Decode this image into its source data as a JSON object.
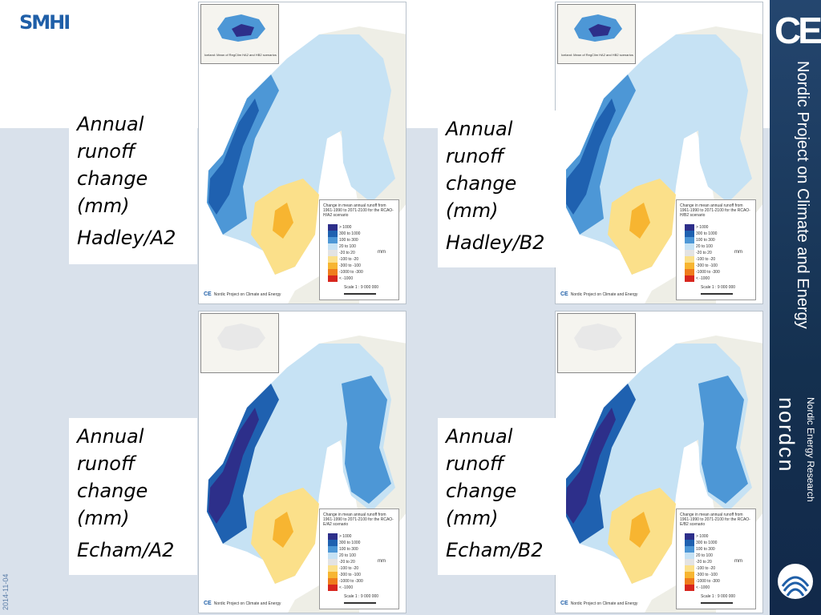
{
  "header": {
    "logo": "SMHI",
    "date": "2014-11-04"
  },
  "sidebar": {
    "logo": "CE",
    "title": "Nordic Project on Climate and Energy",
    "org_name": "nordcn",
    "org_subtitle": "Nordic Energy Research"
  },
  "legend": {
    "unit": "mm",
    "scale": "Scale 1 : 9 000 000",
    "items": [
      {
        "label": "> 1000",
        "color": "#2d2f8a"
      },
      {
        "label": "300 to 1000",
        "color": "#1f61b0"
      },
      {
        "label": "100 to 300",
        "color": "#4d97d6"
      },
      {
        "label": "20 to 100",
        "color": "#c6e2f4"
      },
      {
        "label": "-20 to 20",
        "color": "#e3e3e3"
      },
      {
        "label": "-100 to -20",
        "color": "#fbe08a"
      },
      {
        "label": "-300 to -100",
        "color": "#f7b531"
      },
      {
        "label": "-1000 to -300",
        "color": "#ef7c1c"
      },
      {
        "label": "< -1000",
        "color": "#d7261e"
      }
    ],
    "footer": "Nordic Project on Climate and Energy"
  },
  "panels": [
    {
      "id": "hadley-a2",
      "legend_title": "Change in mean annual runoff from 1961-1990 to 2071-2100 for the RCAO-H/A2 scenario",
      "inset_caption": "Iceland: Mean of RegClim HA2 and HB2 scenarios",
      "caption": {
        "line1": "Annual",
        "line2": "runoff",
        "line3": "change",
        "line4": "(mm)",
        "model": "Hadley/A2"
      }
    },
    {
      "id": "hadley-b2",
      "legend_title": "Change in mean annual runoff from 1961-1990 to 2071-2100 for the RCAO-H/B2 scenario",
      "inset_caption": "Iceland: Mean of RegClim HA2 and HB2 scenarios",
      "caption": {
        "line1": "Annual",
        "line2": "runoff",
        "line3": "change",
        "line4": "(mm)",
        "model": "Hadley/B2"
      }
    },
    {
      "id": "echam-a2",
      "legend_title": "Change in mean annual runoff from 1961-1990 to 2071-2100 for the RCAO-E/A2 scenario",
      "inset_caption": "",
      "caption": {
        "line1": "Annual",
        "line2": "runoff",
        "line3": "change",
        "line4": "(mm)",
        "model": "Echam/A2"
      }
    },
    {
      "id": "echam-b2",
      "legend_title": "Change in mean annual runoff from 1961-1990 to 2071-2100 for the RCAO-E/B2 scenario",
      "inset_caption": "",
      "caption": {
        "line1": "Annual",
        "line2": "runoff",
        "line3": "change",
        "line4": "(mm)",
        "model": "Echam/B2"
      }
    }
  ]
}
